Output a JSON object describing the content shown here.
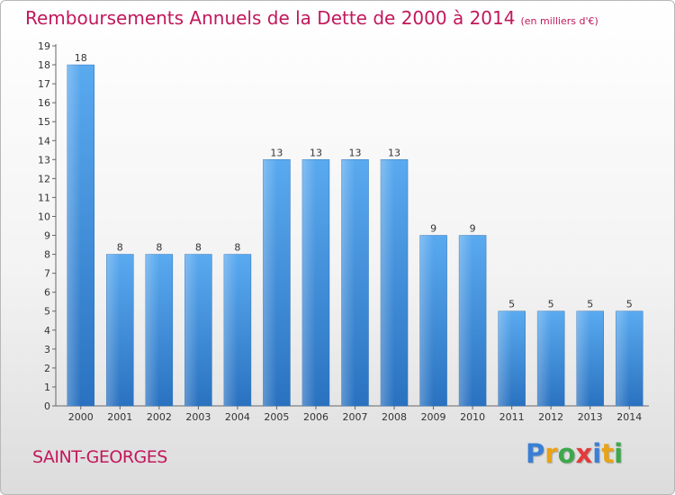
{
  "title": "Remboursements Annuels de la Dette de 2000 à 2014",
  "subtitle": "(en milliers d'€)",
  "commune": "SAINT-GEORGES",
  "logo": {
    "text": "Proxiti",
    "letters": [
      {
        "ch": "P",
        "color": "#3b7fd4"
      },
      {
        "ch": "r",
        "color": "#e8a317"
      },
      {
        "ch": "o",
        "color": "#3ca84a"
      },
      {
        "ch": "x",
        "color": "#e23b3b"
      },
      {
        "ch": "i",
        "color": "#3b7fd4"
      },
      {
        "ch": "t",
        "color": "#e8a317"
      },
      {
        "ch": "i",
        "color": "#3ca84a"
      }
    ]
  },
  "chart_data": {
    "type": "bar",
    "categories": [
      "2000",
      "2001",
      "2002",
      "2003",
      "2004",
      "2005",
      "2006",
      "2007",
      "2008",
      "2009",
      "2010",
      "2011",
      "2012",
      "2013",
      "2014"
    ],
    "values": [
      18,
      8,
      8,
      8,
      8,
      13,
      13,
      13,
      13,
      9,
      9,
      5,
      5,
      5,
      5
    ],
    "data_labels": [
      "18",
      "8",
      "8",
      "8",
      "8",
      "13",
      "13",
      "13",
      "13",
      "9",
      "9",
      "5",
      "5",
      "5",
      "5"
    ],
    "yticks": [
      "0",
      "1",
      "2",
      "3",
      "4",
      "5",
      "6",
      "7",
      "8",
      "9",
      "10",
      "11",
      "12",
      "13",
      "14",
      "15",
      "16",
      "17",
      "18",
      "19"
    ],
    "ylim": [
      0,
      19
    ],
    "grid": false,
    "bar_color": "#3f8fd9"
  }
}
